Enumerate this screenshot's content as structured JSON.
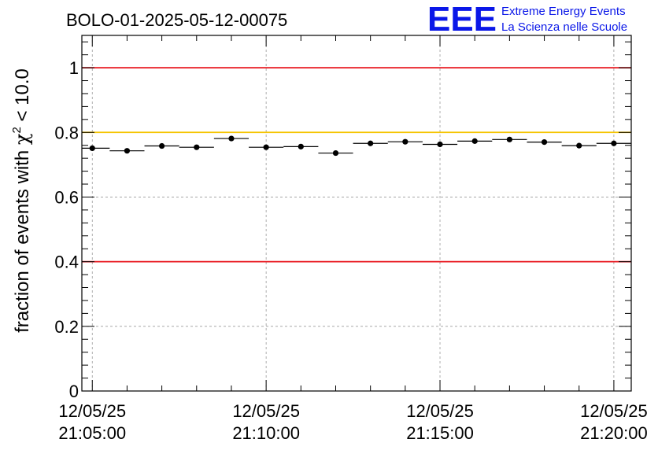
{
  "chart_data": {
    "type": "scatter",
    "title": "BOLO-01-2025-05-12-00075",
    "ylabel_prefix": "fraction of events with ",
    "ylabel_symbol": "χ",
    "ylabel_sup": "2",
    "ylabel_suffix": " < 10.0",
    "ylim": [
      0,
      1.1
    ],
    "yticks": [
      {
        "value": 0,
        "label": "0"
      },
      {
        "value": 0.2,
        "label": "0.2"
      },
      {
        "value": 0.4,
        "label": "0.4"
      },
      {
        "value": 0.6,
        "label": "0.6"
      },
      {
        "value": 0.8,
        "label": "0.8"
      },
      {
        "value": 1.0,
        "label": "1"
      }
    ],
    "xlim_minutes": [
      -0.3,
      15.5
    ],
    "xticks": [
      {
        "minute": 0,
        "date": "12/05/25",
        "time": "21:05:00"
      },
      {
        "minute": 5,
        "date": "12/05/25",
        "time": "21:10:00"
      },
      {
        "minute": 10,
        "date": "12/05/25",
        "time": "21:15:00"
      },
      {
        "minute": 15,
        "date": "12/05/25",
        "time": "21:20:00"
      }
    ],
    "bin_width_minutes": 1,
    "points": [
      {
        "minute": 0.0,
        "value": 0.751
      },
      {
        "minute": 1.0,
        "value": 0.743
      },
      {
        "minute": 2.0,
        "value": 0.758
      },
      {
        "minute": 3.0,
        "value": 0.754
      },
      {
        "minute": 4.0,
        "value": 0.781
      },
      {
        "minute": 5.0,
        "value": 0.754
      },
      {
        "minute": 6.0,
        "value": 0.756
      },
      {
        "minute": 7.0,
        "value": 0.736
      },
      {
        "minute": 8.0,
        "value": 0.766
      },
      {
        "minute": 9.0,
        "value": 0.771
      },
      {
        "minute": 10.0,
        "value": 0.763
      },
      {
        "minute": 11.0,
        "value": 0.773
      },
      {
        "minute": 12.0,
        "value": 0.778
      },
      {
        "minute": 13.0,
        "value": 0.77
      },
      {
        "minute": 14.0,
        "value": 0.759
      },
      {
        "minute": 15.0,
        "value": 0.766
      }
    ],
    "reference_lines": [
      {
        "name": "red-upper",
        "value": 1.0,
        "color": "#e8141b"
      },
      {
        "name": "yellow",
        "value": 0.8,
        "color": "#f5c400"
      },
      {
        "name": "red-lower",
        "value": 0.4,
        "color": "#e8141b"
      }
    ],
    "grid": true
  },
  "logo": {
    "mark": "EEE",
    "line1": "Extreme Energy Events",
    "line2": "La Scienza nelle Scuole",
    "color": "#0a17e8"
  }
}
